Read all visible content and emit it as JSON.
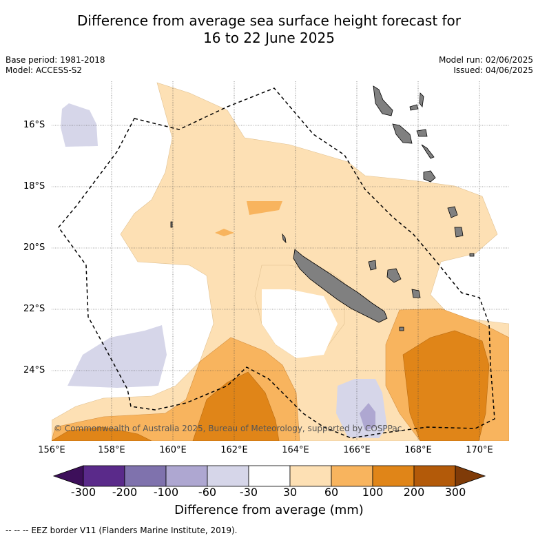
{
  "title_line1": "Difference from average sea surface height forecast for",
  "title_line2": "16 to 22 June 2025",
  "base_period": "Base period: 1981-2018",
  "model": "Model: ACCESS-S2",
  "model_run": "Model run: 02/06/2025",
  "issued": "Issued: 04/06/2025",
  "lon_labels": [
    "156°E",
    "158°E",
    "160°E",
    "162°E",
    "164°E",
    "166°E",
    "168°E",
    "170°E"
  ],
  "lat_labels": [
    "16°S",
    "18°S",
    "20°S",
    "22°S",
    "24°S"
  ],
  "copyright": "© Commonwealth of Australia 2025, Bureau of Meteorology, supported by COSPPac",
  "colorbar": {
    "ticks": [
      "-300",
      "-200",
      "-100",
      "-60",
      "-30",
      "30",
      "60",
      "100",
      "200",
      "300"
    ],
    "colors": [
      "#3d0f5a",
      "#5a2a8a",
      "#7f72ad",
      "#aea7d1",
      "#d6d6e9",
      "#ffffff",
      "#fde0b4",
      "#f8b45e",
      "#e08518",
      "#b35a09",
      "#7f3b08"
    ],
    "label": "Difference from average (mm)"
  },
  "footnote": "--  --  -- EEZ border V11 (Flanders Marine Institute, 2019).",
  "map_colors": {
    "light_orange": "#fde0b4",
    "mid_orange": "#f8b45e",
    "dark_orange": "#e08518",
    "light_purple": "#d6d6e9",
    "mid_purple": "#aea7d1",
    "land": "#808080"
  }
}
